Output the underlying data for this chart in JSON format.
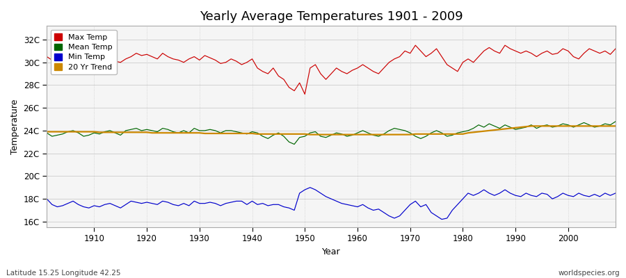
{
  "title": "Yearly Average Temperatures 1901 - 2009",
  "xlabel": "Year",
  "ylabel": "Temperature",
  "start_year": 1901,
  "end_year": 2009,
  "yticks": [
    16,
    18,
    20,
    22,
    24,
    26,
    28,
    30,
    32
  ],
  "ytick_labels": [
    "16C",
    "18C",
    "20C",
    "22C",
    "24C",
    "26C",
    "28C",
    "30C",
    "32C"
  ],
  "ylim": [
    15.5,
    33.2
  ],
  "xlim": [
    1901,
    2009
  ],
  "fig_bg_color": "#ffffff",
  "plot_bg_color": "#f5f5f5",
  "legend_entries": [
    "Max Temp",
    "Mean Temp",
    "Min Temp",
    "20 Yr Trend"
  ],
  "legend_colors": [
    "#cc0000",
    "#006600",
    "#0000cc",
    "#cc8800"
  ],
  "max_temp": [
    30.5,
    30.2,
    30.0,
    29.8,
    30.1,
    30.3,
    30.0,
    30.2,
    30.0,
    29.8,
    29.9,
    29.7,
    29.5,
    30.1,
    30.0,
    30.3,
    30.5,
    30.8,
    30.6,
    30.7,
    30.5,
    30.3,
    30.8,
    30.5,
    30.3,
    30.2,
    30.0,
    30.3,
    30.5,
    30.2,
    30.6,
    30.4,
    30.2,
    29.9,
    30.0,
    30.3,
    30.1,
    29.8,
    30.0,
    30.3,
    29.5,
    29.2,
    29.0,
    29.5,
    28.8,
    28.5,
    27.8,
    27.5,
    28.2,
    27.2,
    29.5,
    29.8,
    29.0,
    28.5,
    29.0,
    29.5,
    29.2,
    29.0,
    29.3,
    29.5,
    29.8,
    29.5,
    29.2,
    29.0,
    29.5,
    30.0,
    30.3,
    30.5,
    31.0,
    30.8,
    31.5,
    31.0,
    30.5,
    30.8,
    31.2,
    30.5,
    29.8,
    29.5,
    29.2,
    30.0,
    30.3,
    30.0,
    30.5,
    31.0,
    31.3,
    31.0,
    30.8,
    31.5,
    31.2,
    31.0,
    30.8,
    31.0,
    30.8,
    30.5,
    30.8,
    31.0,
    30.7,
    30.8,
    31.2,
    31.0,
    30.5,
    30.3,
    30.8,
    31.2,
    31.0,
    30.8,
    31.0,
    30.7,
    31.2
  ],
  "mean_temp": [
    23.8,
    23.5,
    23.6,
    23.7,
    23.9,
    24.0,
    23.8,
    23.5,
    23.6,
    23.8,
    23.7,
    23.9,
    24.0,
    23.8,
    23.6,
    24.0,
    24.1,
    24.2,
    24.0,
    24.1,
    24.0,
    23.9,
    24.2,
    24.1,
    23.9,
    23.8,
    24.0,
    23.8,
    24.2,
    24.0,
    24.0,
    24.1,
    24.0,
    23.8,
    24.0,
    24.0,
    23.9,
    23.8,
    23.7,
    23.9,
    23.8,
    23.5,
    23.3,
    23.6,
    23.8,
    23.5,
    23.0,
    22.8,
    23.4,
    23.5,
    23.8,
    23.9,
    23.5,
    23.4,
    23.6,
    23.8,
    23.7,
    23.5,
    23.6,
    23.8,
    24.0,
    23.8,
    23.6,
    23.5,
    23.7,
    24.0,
    24.2,
    24.1,
    24.0,
    23.8,
    23.5,
    23.3,
    23.5,
    23.8,
    24.0,
    23.8,
    23.5,
    23.6,
    23.8,
    23.9,
    24.0,
    24.2,
    24.5,
    24.3,
    24.6,
    24.4,
    24.2,
    24.5,
    24.3,
    24.1,
    24.2,
    24.3,
    24.5,
    24.2,
    24.4,
    24.5,
    24.3,
    24.4,
    24.6,
    24.5,
    24.3,
    24.5,
    24.7,
    24.5,
    24.3,
    24.4,
    24.6,
    24.5,
    24.8
  ],
  "min_temp": [
    18.0,
    17.5,
    17.3,
    17.4,
    17.6,
    17.8,
    17.5,
    17.3,
    17.2,
    17.4,
    17.3,
    17.5,
    17.6,
    17.4,
    17.2,
    17.5,
    17.8,
    17.7,
    17.6,
    17.7,
    17.6,
    17.5,
    17.8,
    17.7,
    17.5,
    17.4,
    17.6,
    17.4,
    17.8,
    17.6,
    17.6,
    17.7,
    17.6,
    17.4,
    17.6,
    17.7,
    17.8,
    17.8,
    17.5,
    17.8,
    17.5,
    17.6,
    17.4,
    17.5,
    17.5,
    17.3,
    17.2,
    17.0,
    18.5,
    18.8,
    19.0,
    18.8,
    18.5,
    18.2,
    18.0,
    17.8,
    17.6,
    17.5,
    17.4,
    17.3,
    17.5,
    17.2,
    17.0,
    17.1,
    16.8,
    16.5,
    16.3,
    16.5,
    17.0,
    17.5,
    17.8,
    17.3,
    17.5,
    16.8,
    16.5,
    16.2,
    16.3,
    17.0,
    17.5,
    18.0,
    18.5,
    18.3,
    18.5,
    18.8,
    18.5,
    18.3,
    18.5,
    18.8,
    18.5,
    18.3,
    18.2,
    18.5,
    18.3,
    18.2,
    18.5,
    18.4,
    18.0,
    18.2,
    18.5,
    18.3,
    18.2,
    18.5,
    18.3,
    18.2,
    18.4,
    18.2,
    18.5,
    18.3,
    18.5
  ],
  "trend": [
    23.9,
    23.9,
    23.9,
    23.9,
    23.9,
    23.9,
    23.9,
    23.9,
    23.9,
    23.9,
    23.85,
    23.85,
    23.85,
    23.85,
    23.85,
    23.85,
    23.85,
    23.85,
    23.85,
    23.85,
    23.8,
    23.8,
    23.8,
    23.8,
    23.8,
    23.8,
    23.8,
    23.8,
    23.8,
    23.8,
    23.75,
    23.75,
    23.75,
    23.75,
    23.75,
    23.75,
    23.75,
    23.75,
    23.75,
    23.75,
    23.7,
    23.7,
    23.7,
    23.7,
    23.7,
    23.7,
    23.7,
    23.7,
    23.7,
    23.7,
    23.65,
    23.65,
    23.65,
    23.65,
    23.65,
    23.65,
    23.65,
    23.65,
    23.65,
    23.65,
    23.65,
    23.65,
    23.65,
    23.65,
    23.65,
    23.65,
    23.65,
    23.65,
    23.65,
    23.65,
    23.7,
    23.7,
    23.7,
    23.7,
    23.7,
    23.7,
    23.7,
    23.7,
    23.7,
    23.7,
    23.8,
    23.85,
    23.9,
    23.95,
    24.0,
    24.05,
    24.1,
    24.15,
    24.2,
    24.25,
    24.3,
    24.35,
    24.4,
    24.4,
    24.4,
    24.4,
    24.4,
    24.4,
    24.4,
    24.4,
    24.4,
    24.4,
    24.4,
    24.4,
    24.4,
    24.4,
    24.4,
    24.4,
    24.4
  ],
  "xticks": [
    1910,
    1920,
    1930,
    1940,
    1950,
    1960,
    1970,
    1980,
    1990,
    2000
  ],
  "ygrid_color": "#cccccc",
  "xgrid_color": "#cccccc",
  "xgrid_style": ":",
  "ygrid_style": "-",
  "title_fontsize": 13,
  "axis_label_fontsize": 9,
  "tick_fontsize": 8.5,
  "legend_fontsize": 8,
  "footer_left": "Latitude 15.25 Longitude 42.25",
  "footer_right": "worldspecies.org",
  "footer_fontsize": 7.5,
  "line_width": 0.85
}
